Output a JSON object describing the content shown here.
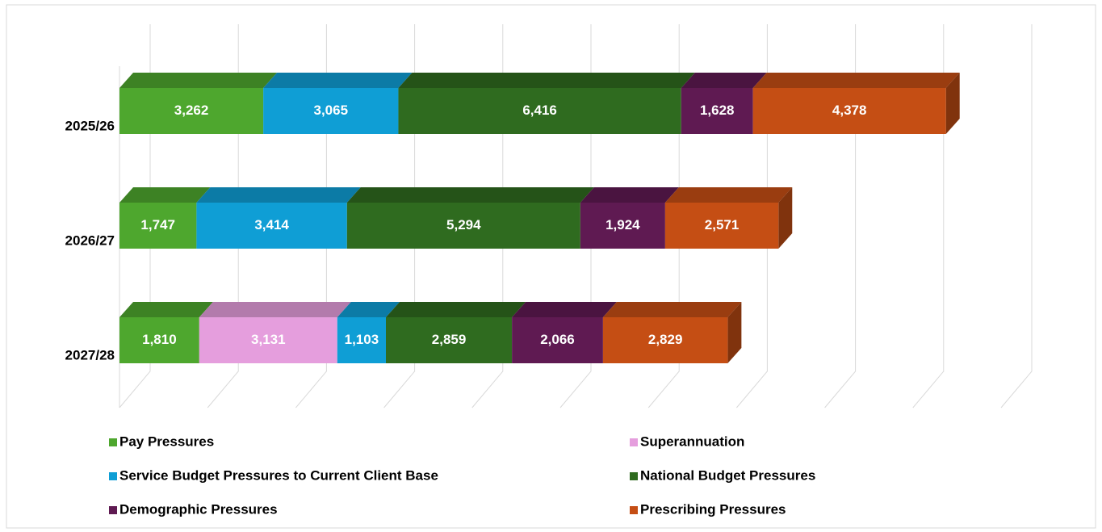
{
  "chart_data": {
    "type": "bar",
    "orientation": "horizontal",
    "stacked": true,
    "categories": [
      "2025/26",
      "2026/27",
      "2027/28"
    ],
    "series": [
      {
        "name": "Pay Pressures",
        "color": "#4ea72e",
        "values": [
          3262,
          1747,
          1810
        ],
        "value_labels": [
          "3,262",
          "1,747",
          "1,810"
        ]
      },
      {
        "name": "Superannuation",
        "color": "#e59edd",
        "values": [
          null,
          null,
          3131
        ],
        "value_labels": [
          null,
          null,
          "3,131"
        ]
      },
      {
        "name": "Service Budget Pressures to Current Client Base",
        "color": "#0f9ed5",
        "values": [
          3065,
          3414,
          1103
        ],
        "value_labels": [
          "3,065",
          "3,414",
          "1,103"
        ]
      },
      {
        "name": "National Budget Pressures",
        "color": "#2f6b1f",
        "values": [
          6416,
          5294,
          2859
        ],
        "value_labels": [
          "6,416",
          "5,294",
          "2,859"
        ]
      },
      {
        "name": "Demographic Pressures",
        "color": "#5f1a52",
        "values": [
          1628,
          1924,
          2066
        ],
        "value_labels": [
          "1,628",
          "1,924",
          "2,066"
        ]
      },
      {
        "name": "Prescribing Pressures",
        "color": "#c54e14",
        "values": [
          4378,
          2571,
          2829
        ],
        "value_labels": [
          "4,378",
          "2,571",
          "2,829"
        ]
      }
    ],
    "xlim": [
      0,
      20000
    ],
    "xticks": [
      0,
      2000,
      4000,
      6000,
      8000,
      10000,
      12000,
      14000,
      16000,
      18000,
      20000
    ],
    "grid": true,
    "legend": "bottom"
  }
}
